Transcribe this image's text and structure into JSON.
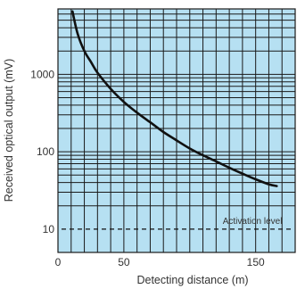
{
  "chart_data": {
    "type": "line",
    "xlabel": "Detecting distance (m)",
    "ylabel": "Received optical output (mV)",
    "xlim": [
      0,
      180
    ],
    "ylim": [
      5,
      7000
    ],
    "y_scale": "log",
    "grid": true,
    "x_ticks": [
      {
        "value": 0,
        "label": "0"
      },
      {
        "value": 50,
        "label": "50"
      },
      {
        "value": 150,
        "label": "150"
      }
    ],
    "x_grid": [
      0,
      10,
      20,
      30,
      40,
      50,
      60,
      70,
      80,
      90,
      100,
      110,
      120,
      130,
      140,
      150,
      160,
      170,
      180
    ],
    "y_ticks": [
      {
        "value": 10,
        "label": "10"
      },
      {
        "value": 100,
        "label": "100"
      },
      {
        "value": 1000,
        "label": "1000"
      }
    ],
    "y_grid": [
      20,
      30,
      40,
      50,
      60,
      70,
      80,
      90,
      100,
      200,
      300,
      400,
      500,
      600,
      700,
      800,
      900,
      1000,
      2000,
      3000,
      4000,
      5000,
      6000,
      7000
    ],
    "series": [
      {
        "x": [
          11,
          15,
          20,
          25,
          30,
          40,
          50,
          60,
          70,
          80,
          90,
          100,
          110,
          120,
          130,
          140,
          150,
          160,
          166
        ],
        "y": [
          6500,
          3300,
          2000,
          1450,
          1050,
          650,
          440,
          320,
          240,
          180,
          140,
          110,
          90,
          75,
          62,
          52,
          44,
          38,
          36
        ]
      }
    ],
    "reference_line": {
      "y": 10,
      "label": "Activation level"
    },
    "colors": {
      "background": "#b6e0f2",
      "grid": "#1a1a1a",
      "curve": "#111111",
      "text": "#333333"
    }
  }
}
